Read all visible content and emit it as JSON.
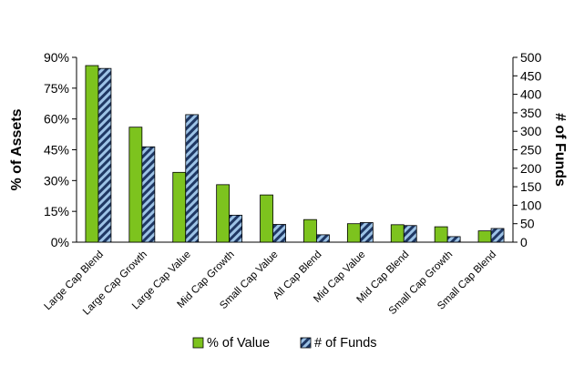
{
  "chart_data": {
    "type": "bar",
    "categories": [
      "Large Cap Blend",
      "Large Cap Growth",
      "Large Cap Value",
      "Mid Cap Growth",
      "Small Cap Value",
      "All Cap Blend",
      "Mid Cap Value",
      "Mid Cap Blend",
      "Small Cap Growth",
      "Small Cap Blend"
    ],
    "series": [
      {
        "name": "% of Value",
        "axis": "left",
        "color": "#7DC31E",
        "pattern": "solid",
        "values": [
          86,
          56,
          34,
          28,
          23,
          11,
          9,
          8.5,
          7.5,
          5.5
        ]
      },
      {
        "name": "# of Funds",
        "axis": "right",
        "color": "#9DC3E6",
        "pattern": "diagonal-stripes",
        "values": [
          470,
          258,
          345,
          73,
          48,
          20,
          53,
          45,
          15,
          37
        ]
      }
    ],
    "y_left": {
      "label": "% of Assets",
      "ylim": [
        0,
        90
      ],
      "ticks": [
        "0%",
        "15%",
        "30%",
        "45%",
        "60%",
        "75%",
        "90%"
      ]
    },
    "y_right": {
      "label": "# of Funds",
      "ylim": [
        0,
        500
      ],
      "ticks": [
        "0",
        "50",
        "100",
        "150",
        "200",
        "250",
        "300",
        "350",
        "400",
        "450",
        "500"
      ]
    },
    "xlabel": "",
    "grid": false,
    "legend_position": "bottom"
  }
}
